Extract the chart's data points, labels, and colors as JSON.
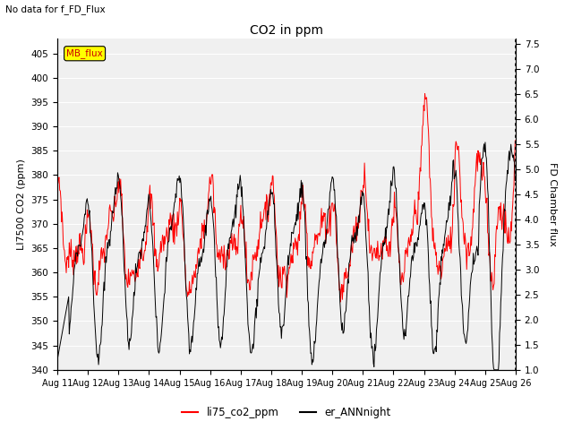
{
  "title": "CO2 in ppm",
  "subtitle": "No data for f_FD_Flux",
  "left_ylabel": "LI7500 CO2 (ppm)",
  "right_ylabel": "FD Chamber flux",
  "left_ylim": [
    340,
    408
  ],
  "left_yticks": [
    340,
    345,
    350,
    355,
    360,
    365,
    370,
    375,
    380,
    385,
    390,
    395,
    400,
    405
  ],
  "right_ylim": [
    1.0,
    7.6
  ],
  "right_yticks": [
    1.0,
    1.5,
    2.0,
    2.5,
    3.0,
    3.5,
    4.0,
    4.5,
    5.0,
    5.5,
    6.0,
    6.5,
    7.0,
    7.5
  ],
  "xlabel_ticks": [
    "Aug 11",
    "Aug 12",
    "Aug 13",
    "Aug 14",
    "Aug 15",
    "Aug 16",
    "Aug 17",
    "Aug 18",
    "Aug 19",
    "Aug 20",
    "Aug 21",
    "Aug 22",
    "Aug 23",
    "Aug 24",
    "Aug 25",
    "Aug 26"
  ],
  "line1_color": "#ff0000",
  "line2_color": "#000000",
  "legend_labels": [
    "li75_co2_ppm",
    "er_ANNnight"
  ],
  "mb_flux_box_color": "#ffff00",
  "mb_flux_text_color": "#cc0000",
  "mb_flux_border_color": "#000000",
  "bg_color": "#ffffff",
  "plot_bg_color": "#f0f0f0",
  "grid_color": "#ffffff"
}
